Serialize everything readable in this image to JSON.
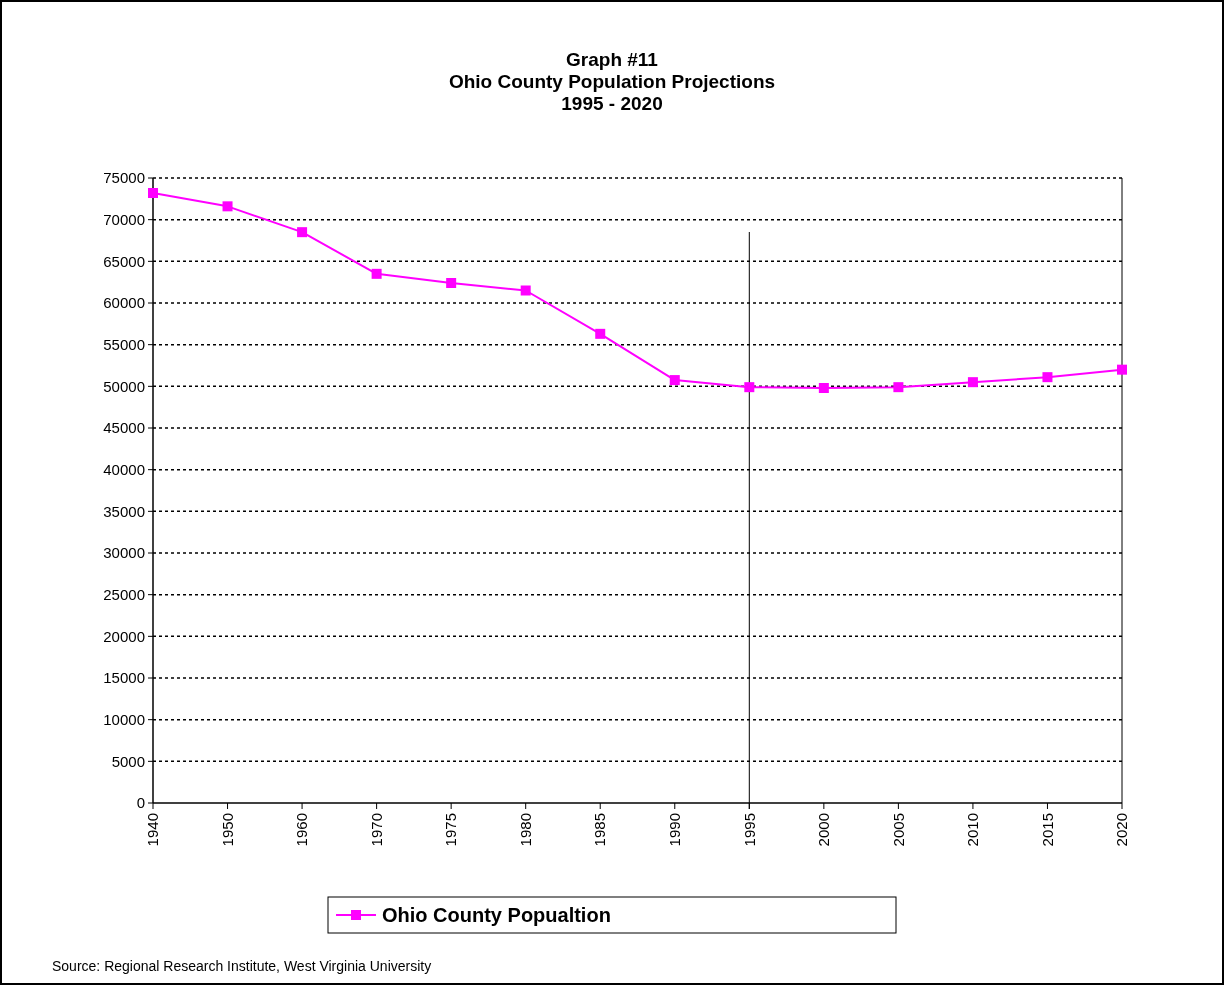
{
  "chart_data": {
    "type": "line",
    "title": "Graph #11\nOhio County Population Projections\n1995 - 2020",
    "categories": [
      "1940",
      "1950",
      "1960",
      "1970",
      "1975",
      "1980",
      "1985",
      "1990",
      "1995",
      "2000",
      "2005",
      "2010",
      "2015",
      "2020"
    ],
    "series": [
      {
        "name": "Ohio County Popualtion",
        "color": "#ff00ff",
        "values": [
          73200,
          71600,
          68500,
          63500,
          62400,
          61500,
          56300,
          50750,
          49900,
          49800,
          49900,
          50500,
          51100,
          52000
        ]
      }
    ],
    "ylim": [
      0,
      75000
    ],
    "yticks": [
      0,
      5000,
      10000,
      15000,
      20000,
      25000,
      30000,
      35000,
      40000,
      45000,
      50000,
      55000,
      60000,
      65000,
      70000,
      75000
    ],
    "grid": "y",
    "legend": "bottom",
    "marker": "square",
    "line_style": "solid",
    "ref_lines": [
      {
        "axis": "x",
        "value": "1995",
        "color": "#000000"
      }
    ],
    "annotations": [
      "Source: Regional Research Institute, West Virginia University"
    ]
  }
}
